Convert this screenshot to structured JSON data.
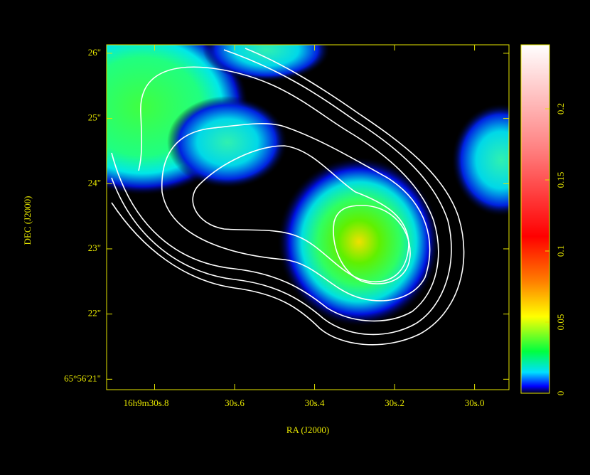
{
  "chart_data": {
    "type": "image",
    "xlabel": "RA (J2000)",
    "ylabel": "DEC (J2000)",
    "xlim": [
      30.92,
      29.914
    ],
    "xticks": [
      {
        "value": 30.8,
        "label": "16h9m30s.8"
      },
      {
        "value": 30.6,
        "label": "30s.6"
      },
      {
        "value": 30.4,
        "label": "30s.4"
      },
      {
        "value": 30.2,
        "label": "30s.2"
      },
      {
        "value": 30.0,
        "label": "30s.0"
      }
    ],
    "ylim": [
      20.84,
      26.13
    ],
    "yticks": [
      {
        "value": 21,
        "label": "65°56'21\""
      },
      {
        "value": 22,
        "label": "22\""
      },
      {
        "value": 23,
        "label": "23\""
      },
      {
        "value": 24,
        "label": "24\""
      },
      {
        "value": 25,
        "label": "25\""
      },
      {
        "value": 26,
        "label": "26\""
      }
    ],
    "colorbar": {
      "lim": [
        0,
        0.245
      ],
      "ticks": [
        0,
        0.05,
        0.1,
        0.15,
        0.2
      ]
    }
  }
}
